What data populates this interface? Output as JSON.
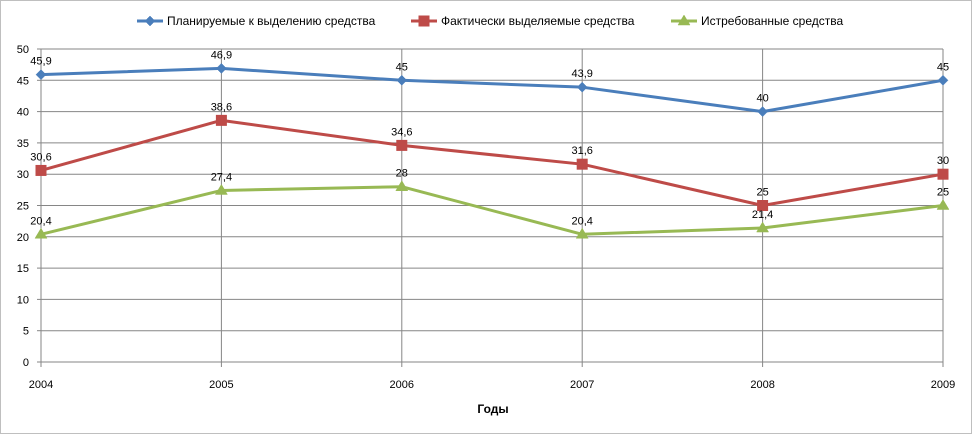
{
  "chart_data": {
    "type": "line",
    "title": "",
    "xlabel": "Годы",
    "ylabel": "",
    "categories": [
      "2004",
      "2005",
      "2006",
      "2007",
      "2008",
      "2009"
    ],
    "ylim": [
      0,
      50
    ],
    "yticks": [
      0,
      5,
      10,
      15,
      20,
      25,
      30,
      35,
      40,
      45,
      50
    ],
    "grid": true,
    "legend_position": "top",
    "series": [
      {
        "name": "Планируемые к выделению средства",
        "values": [
          45.9,
          46.9,
          45,
          43.9,
          40,
          45
        ],
        "labels": [
          "45,9",
          "46,9",
          "45",
          "43,9",
          "40",
          "45"
        ],
        "color": "#4a7ebb",
        "marker": "diamond"
      },
      {
        "name": "Фактически выделяемые средства",
        "values": [
          30.6,
          38.6,
          34.6,
          31.6,
          25,
          30
        ],
        "labels": [
          "30,6",
          "38,6",
          "34,6",
          "31,6",
          "25",
          "30"
        ],
        "color": "#be4b48",
        "marker": "square"
      },
      {
        "name": "Истребованные средства",
        "values": [
          20.4,
          27.4,
          28,
          20.4,
          21.4,
          25
        ],
        "labels": [
          "20,4",
          "27,4",
          "28",
          "20,4",
          "21,4",
          "25"
        ],
        "color": "#98b954",
        "marker": "triangle"
      }
    ]
  }
}
